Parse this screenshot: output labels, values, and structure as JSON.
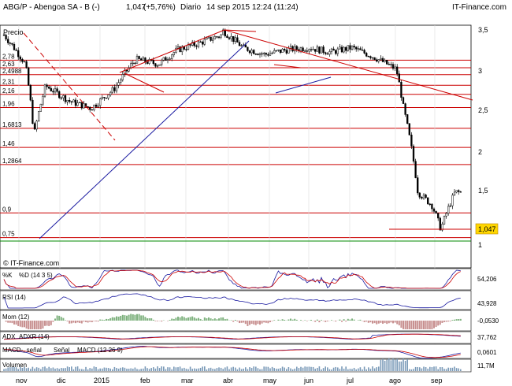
{
  "header": {
    "symbol": "ABG/P - Abengoa SA - B (-)",
    "price": "1,047",
    "change": "(+5,76%)",
    "period": "Diario",
    "date": "14 sep 2015 12:24 (11:24)",
    "brand": "IT-Finance.com",
    "logo": "IT"
  },
  "main_panel": {
    "label": "Precio",
    "watermark": "© IT-Finance.com",
    "last_price": "1,047",
    "yaxis_ticks": [
      "3,5",
      "3",
      "2,5",
      "2",
      "1,5",
      "1"
    ],
    "horizontal_levels": [
      "2,78",
      "2,63",
      "2,4988",
      "2,31",
      "2,16",
      "1,96",
      "1,6813",
      "1,46",
      "1,2864",
      "0,9",
      "0,75"
    ],
    "colors": {
      "support_resistance": "#cc0000",
      "trend_blue": "#1a1aa0",
      "green_line": "#008800"
    }
  },
  "xaxis_labels": [
    "nov",
    "dic",
    "2015",
    "feb",
    "mar",
    "abr",
    "may",
    "jun",
    "jul",
    "ago",
    "sep"
  ],
  "indicators": {
    "stoch": {
      "label": "%K",
      "legend": "%D (14 3 5)",
      "value": "54,206"
    },
    "rsi": {
      "label": "RSI (14)",
      "value": "43,928"
    },
    "mom": {
      "label": "Mom (12)",
      "value": "-0,0530"
    },
    "adx": {
      "label": "ADX",
      "legend": "ADXR (14)",
      "value": "37,762"
    },
    "macd": {
      "label": "MACD-, señal",
      "legend1": "Señal",
      "legend2": "MACD (12 26 9)",
      "value": "0,0601"
    },
    "volume": {
      "label": "Volumen",
      "value": "11,7M"
    }
  },
  "chart_data": {
    "type": "candlestick",
    "title": "ABG/P - Abengoa SA - B (-)",
    "x": [
      "2014-10-30",
      "2014-11-14",
      "2014-11-20",
      "2014-11-28",
      "2014-12-15",
      "2014-12-30",
      "2015-01-15",
      "2015-01-30",
      "2015-02-15",
      "2015-02-28",
      "2015-03-15",
      "2015-03-31",
      "2015-04-01",
      "2015-04-15",
      "2015-04-30",
      "2015-05-15",
      "2015-05-31",
      "2015-06-15",
      "2015-06-30",
      "2015-07-15",
      "2015-07-31",
      "2015-08-05",
      "2015-08-15",
      "2015-08-25",
      "2015-08-31",
      "2015-09-10",
      "2015-09-14"
    ],
    "series": [
      {
        "name": "Precio",
        "values": [
          3.35,
          2.7,
          1.6,
          2.3,
          2.05,
          1.95,
          2.25,
          2.8,
          2.7,
          3.0,
          3.15,
          3.35,
          3.45,
          3.05,
          2.9,
          3.0,
          3.05,
          2.95,
          3.05,
          2.85,
          2.6,
          1.95,
          1.05,
          0.95,
          0.8,
          1.05,
          1.047
        ]
      }
    ],
    "ylim": [
      0.6,
      3.6
    ],
    "yscale": "log",
    "horizontal_levels": [
      2.78,
      2.63,
      2.4988,
      2.31,
      2.16,
      1.96,
      1.6813,
      1.46,
      1.2864,
      0.9,
      0.75
    ],
    "grid": false
  }
}
